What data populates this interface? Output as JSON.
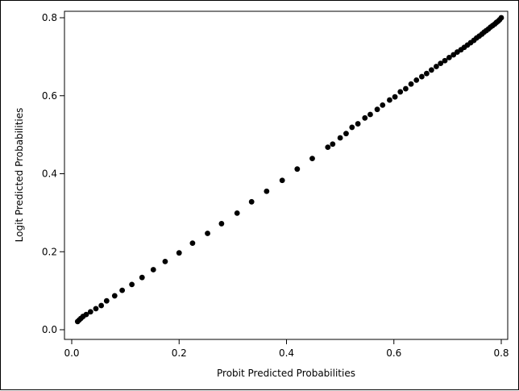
{
  "chart_data": {
    "type": "scatter",
    "title": "",
    "xlabel": "Probit Predicted Probabilities",
    "ylabel": "Logit Predicted Probabilities",
    "xlim": [
      0,
      0.8
    ],
    "ylim": [
      0,
      0.8
    ],
    "xticks": [
      0.0,
      0.2,
      0.4,
      0.6,
      0.8
    ],
    "xtick_labels": [
      "0.0",
      "0.2",
      "0.4",
      "0.6",
      "0.8"
    ],
    "yticks": [
      0.0,
      0.2,
      0.4,
      0.6,
      0.8
    ],
    "ytick_labels": [
      "0.0",
      "0.2",
      "0.4",
      "0.6",
      "0.8"
    ],
    "grid": false,
    "marker_color": "#000000",
    "points": [
      [
        0.011,
        0.021
      ],
      [
        0.014,
        0.025
      ],
      [
        0.017,
        0.029
      ],
      [
        0.021,
        0.034
      ],
      [
        0.027,
        0.039
      ],
      [
        0.035,
        0.046
      ],
      [
        0.045,
        0.054
      ],
      [
        0.055,
        0.062
      ],
      [
        0.065,
        0.074
      ],
      [
        0.08,
        0.087
      ],
      [
        0.094,
        0.101
      ],
      [
        0.112,
        0.116
      ],
      [
        0.131,
        0.134
      ],
      [
        0.152,
        0.154
      ],
      [
        0.174,
        0.175
      ],
      [
        0.2,
        0.197
      ],
      [
        0.225,
        0.222
      ],
      [
        0.253,
        0.247
      ],
      [
        0.279,
        0.272
      ],
      [
        0.308,
        0.299
      ],
      [
        0.335,
        0.328
      ],
      [
        0.363,
        0.355
      ],
      [
        0.392,
        0.383
      ],
      [
        0.42,
        0.412
      ],
      [
        0.448,
        0.439
      ],
      [
        0.477,
        0.468
      ],
      [
        0.486,
        0.476
      ],
      [
        0.5,
        0.492
      ],
      [
        0.511,
        0.503
      ],
      [
        0.522,
        0.519
      ],
      [
        0.533,
        0.528
      ],
      [
        0.546,
        0.543
      ],
      [
        0.556,
        0.552
      ],
      [
        0.569,
        0.565
      ],
      [
        0.579,
        0.576
      ],
      [
        0.592,
        0.589
      ],
      [
        0.602,
        0.597
      ],
      [
        0.612,
        0.61
      ],
      [
        0.622,
        0.618
      ],
      [
        0.632,
        0.63
      ],
      [
        0.642,
        0.64
      ],
      [
        0.652,
        0.649
      ],
      [
        0.661,
        0.657
      ],
      [
        0.67,
        0.666
      ],
      [
        0.679,
        0.675
      ],
      [
        0.687,
        0.683
      ],
      [
        0.695,
        0.69
      ],
      [
        0.703,
        0.698
      ],
      [
        0.711,
        0.705
      ],
      [
        0.718,
        0.712
      ],
      [
        0.725,
        0.718
      ],
      [
        0.731,
        0.724
      ],
      [
        0.737,
        0.73
      ],
      [
        0.743,
        0.736
      ],
      [
        0.749,
        0.742
      ],
      [
        0.754,
        0.748
      ],
      [
        0.759,
        0.753
      ],
      [
        0.764,
        0.758
      ],
      [
        0.768,
        0.763
      ],
      [
        0.772,
        0.767
      ],
      [
        0.776,
        0.771
      ],
      [
        0.78,
        0.776
      ],
      [
        0.784,
        0.78
      ],
      [
        0.788,
        0.784
      ],
      [
        0.791,
        0.788
      ],
      [
        0.794,
        0.791
      ],
      [
        0.797,
        0.795
      ],
      [
        0.8,
        0.8
      ]
    ]
  }
}
